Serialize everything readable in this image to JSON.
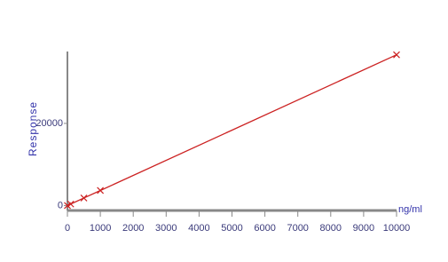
{
  "chart_data": {
    "type": "line",
    "x_label": "ng/ml",
    "y_label": "Response",
    "x": [
      0,
      100,
      500,
      1000,
      10000
    ],
    "series": [
      {
        "name": "Response",
        "color": "#cc2222",
        "values": [
          0,
          370,
          1840,
          3670,
          36700
        ]
      }
    ],
    "xlim": [
      0,
      10000
    ],
    "ylim": [
      -1200,
      37500
    ],
    "xticks": [
      0,
      1000,
      2000,
      3000,
      4000,
      5000,
      6000,
      7000,
      8000,
      9000,
      10000
    ],
    "yticks": [
      0,
      20000
    ],
    "grid": false
  }
}
